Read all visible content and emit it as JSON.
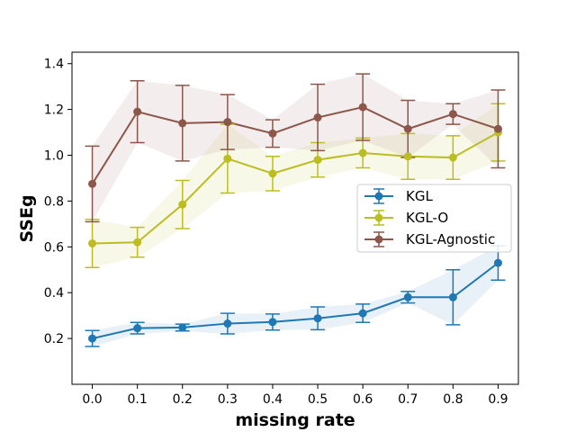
{
  "chart_data": {
    "type": "line",
    "title": "",
    "xlabel": "missing rate",
    "ylabel": "SSEg",
    "x": [
      0.0,
      0.1,
      0.2,
      0.3,
      0.4,
      0.5,
      0.6,
      0.7,
      0.8,
      0.9
    ],
    "x_tick_labels": [
      "0.0",
      "0.1",
      "0.2",
      "0.3",
      "0.4",
      "0.5",
      "0.6",
      "0.7",
      "0.8",
      "0.9"
    ],
    "xlim": [
      -0.045,
      0.945
    ],
    "ylim": [
      0.0,
      1.45
    ],
    "y_ticks": [
      0.2,
      0.4,
      0.6,
      0.8,
      1.0,
      1.2,
      1.4
    ],
    "y_tick_labels": [
      "0.2",
      "0.4",
      "0.6",
      "0.8",
      "1.0",
      "1.2",
      "1.4"
    ],
    "grid": false,
    "legend_position": "center-right",
    "series": [
      {
        "name": "KGL",
        "color": "#1f77b4",
        "values": [
          0.2,
          0.245,
          0.248,
          0.265,
          0.272,
          0.288,
          0.31,
          0.38,
          0.38,
          0.53
        ],
        "err": [
          0.035,
          0.025,
          0.015,
          0.045,
          0.035,
          0.05,
          0.04,
          0.025,
          0.12,
          0.075
        ]
      },
      {
        "name": "KGL-O",
        "color": "#bcbd22",
        "values": [
          0.615,
          0.62,
          0.785,
          0.985,
          0.92,
          0.98,
          1.01,
          0.995,
          0.99,
          1.1
        ],
        "err": [
          0.105,
          0.065,
          0.105,
          0.15,
          0.075,
          0.075,
          0.065,
          0.1,
          0.095,
          0.125
        ]
      },
      {
        "name": "KGL-Agnostic",
        "color": "#8c564b",
        "values": [
          0.875,
          1.19,
          1.14,
          1.145,
          1.095,
          1.165,
          1.21,
          1.115,
          1.18,
          1.115
        ],
        "err": [
          0.165,
          0.135,
          0.165,
          0.12,
          0.06,
          0.145,
          0.145,
          0.125,
          0.045,
          0.17
        ]
      }
    ]
  }
}
